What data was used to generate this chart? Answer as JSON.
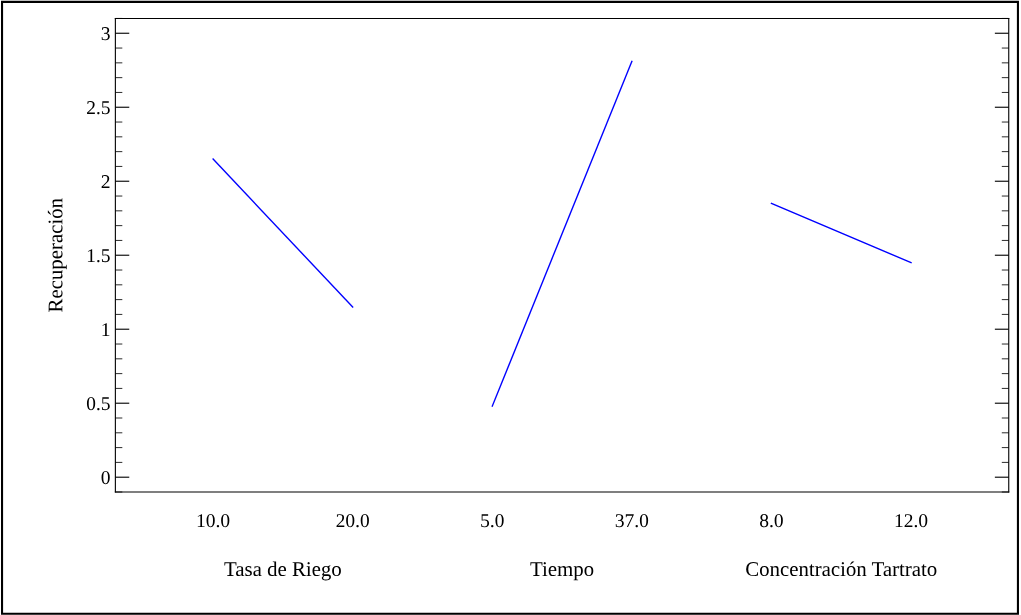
{
  "chart_data": {
    "type": "line",
    "ylabel": "Recuperación",
    "categories": [
      "10.0",
      "20.0",
      "5.0",
      "37.0",
      "8.0",
      "12.0"
    ],
    "series": [
      {
        "color": "#0000ff",
        "values": [
          2.15,
          1.15,
          null,
          null,
          null,
          null
        ]
      },
      {
        "color": "#0000ff",
        "values": [
          null,
          null,
          0.48,
          2.81,
          null,
          null
        ]
      },
      {
        "color": "#0000ff",
        "values": [
          null,
          null,
          null,
          null,
          1.85,
          1.45
        ]
      }
    ],
    "ylim": [
      -0.1,
      3.1
    ],
    "yticks": [
      0,
      0.5,
      1,
      1.5,
      2,
      2.5,
      3
    ],
    "grid": false,
    "legend": false,
    "marker": "none",
    "line_style": "solid",
    "annotations": [
      "Tasa de Riego",
      "Tiempo",
      "Concentración Tartrato"
    ]
  }
}
